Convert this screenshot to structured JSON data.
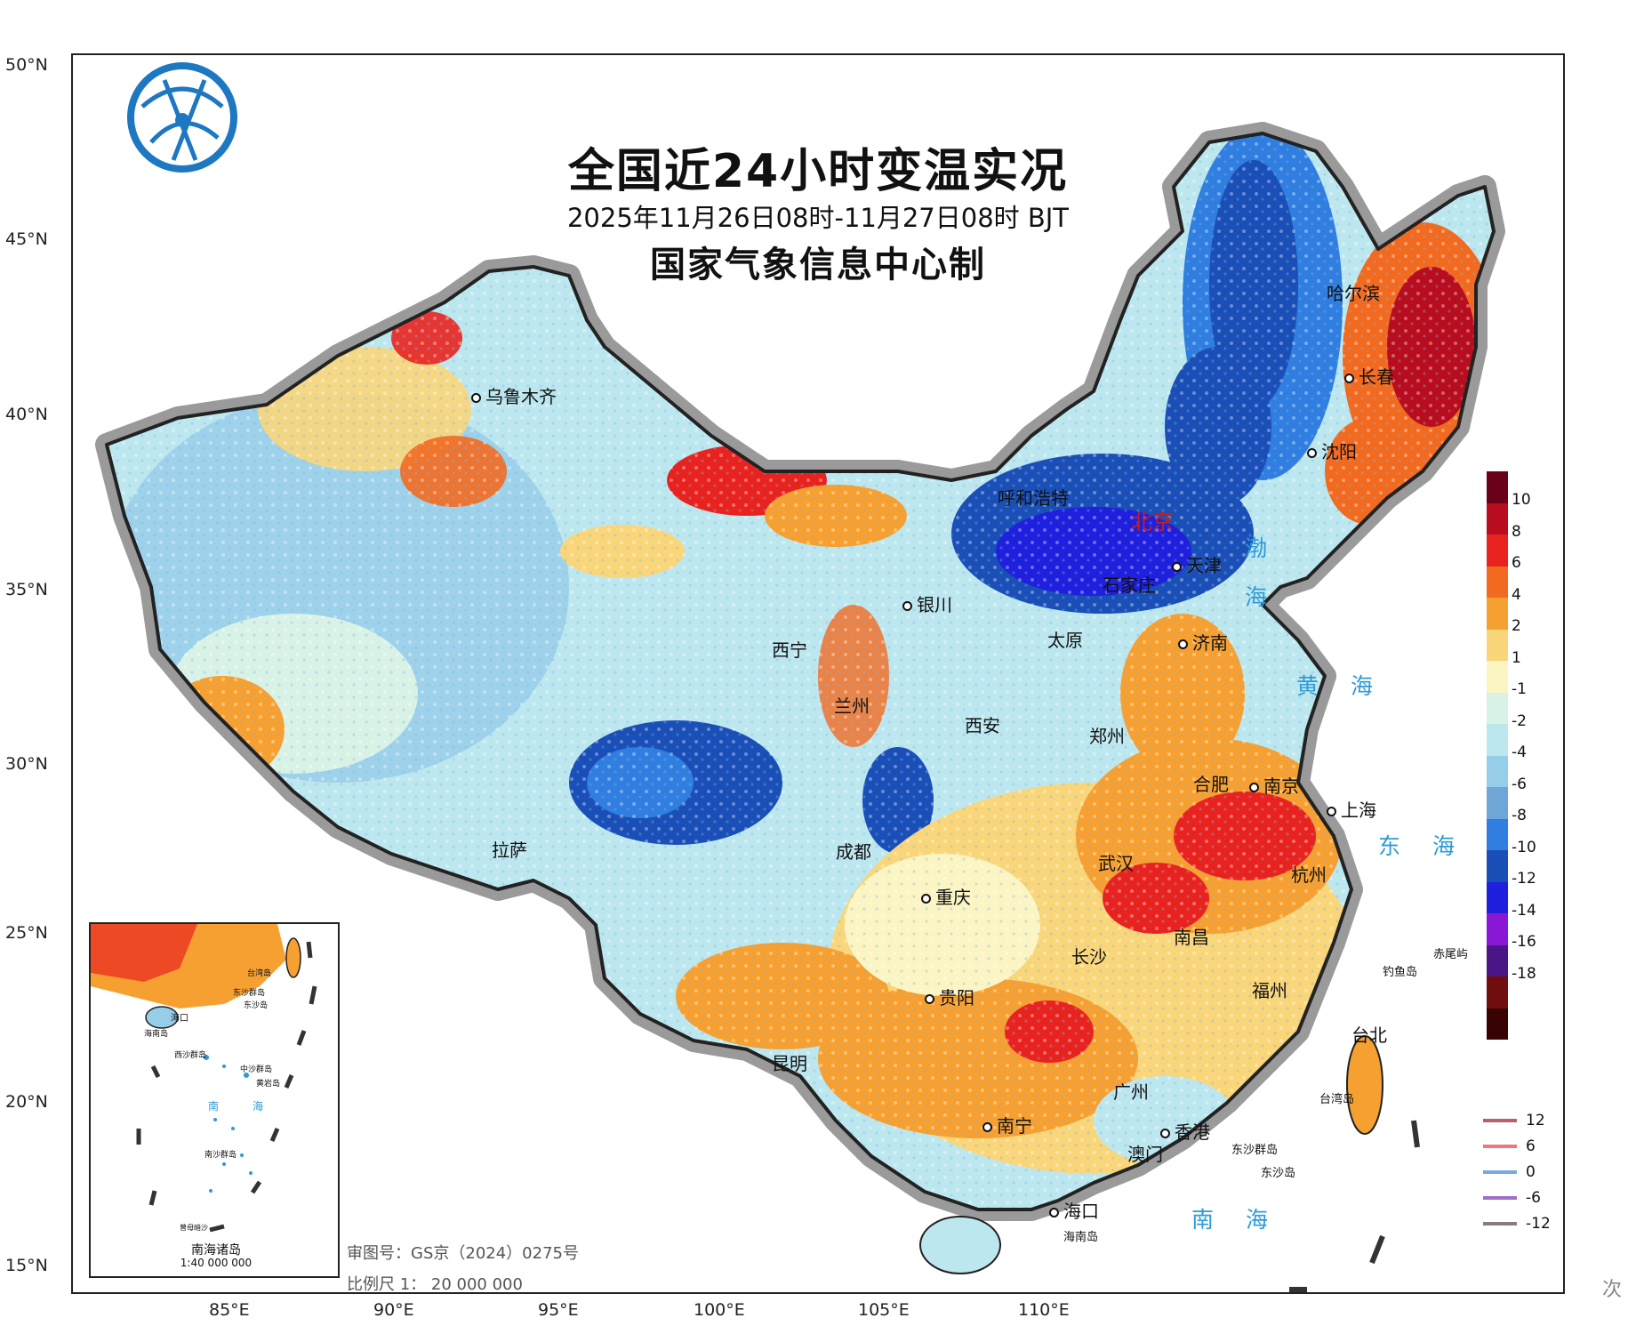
{
  "title": {
    "main": "全国近24小时变温实况",
    "period": "2025年11月26日08时-11月27日08时 BJT",
    "producer": "国家气象信息中心制"
  },
  "latitudes": [
    "50°N",
    "45°N",
    "40°N",
    "35°N",
    "30°N",
    "25°N",
    "20°N",
    "15°N"
  ],
  "longitudes": [
    "85°E",
    "90°E",
    "95°E",
    "100°E",
    "105°E",
    "110°E"
  ],
  "cities": {
    "urumqi": "乌鲁木齐",
    "harbin": "哈尔滨",
    "changchun": "长春",
    "shenyang": "沈阳",
    "hohhot": "呼和浩特",
    "beijing": "北京",
    "tianjin": "天津",
    "shijiazhuang": "石家庄",
    "yinchuan": "银川",
    "taiyuan": "太原",
    "jinan": "济南",
    "xining": "西宁",
    "lanzhou": "兰州",
    "xian": "西安",
    "zhengzhou": "郑州",
    "hefei": "合肥",
    "nanjing": "南京",
    "shanghai": "上海",
    "lhasa": "拉萨",
    "chengdu": "成都",
    "wuhan": "武汉",
    "hangzhou": "杭州",
    "chongqing": "重庆",
    "nanchang": "南昌",
    "changsha": "长沙",
    "guiyang": "贵阳",
    "fuzhou": "福州",
    "taipei": "台北",
    "kunming": "昆明",
    "guangzhou": "广州",
    "nanning": "南宁",
    "hongkong": "香港",
    "macau": "澳门",
    "haikou": "海口"
  },
  "places": {
    "hainan_island": "海南岛",
    "taiwan_island": "台湾岛",
    "diaoyu": "钓鱼岛",
    "chiwei": "赤尾屿",
    "dongsha_islands": "东沙群岛",
    "dongsha_island": "东沙岛"
  },
  "seas": {
    "bohai_1": "渤",
    "bohai_2": "海",
    "yellow_sea": "黄 海",
    "east_sea": "东 海",
    "south_sea": "南 海"
  },
  "inset": {
    "title": "南海诸岛",
    "scale": "1:40 000 000",
    "labels": [
      "台湾岛",
      "东沙群岛",
      "东沙岛",
      "海口",
      "海南岛",
      "西沙群岛",
      "中沙群岛",
      "黄岩岛",
      "南",
      "海",
      "南沙群岛",
      "曾母暗沙"
    ]
  },
  "footer": {
    "review_no": "审图号：GS京（2024）0275号",
    "scale": "比例尺  1： 20 000 000"
  },
  "legend": {
    "colors": [
      "#6b0019",
      "#b80d1e",
      "#e8231f",
      "#f26a20",
      "#f7a032",
      "#fad67a",
      "#fbf5c3",
      "#d9f2e6",
      "#bde7ef",
      "#96cde8",
      "#6fa6d8",
      "#2f7ee0",
      "#1a4fb8",
      "#1f1fde",
      "#8a17d6",
      "#4a1585",
      "#700d0d",
      "#3a0303"
    ],
    "labels": [
      "10",
      "8",
      "6",
      "4",
      "2",
      "1",
      "-1",
      "-2",
      "-4",
      "-6",
      "-8",
      "-10",
      "-12",
      "-14",
      "-16",
      "-18"
    ]
  },
  "isolines": [
    {
      "value": "12",
      "color": "#b8606e"
    },
    {
      "value": "6",
      "color": "#ee7777"
    },
    {
      "value": "0",
      "color": "#7aa8e0"
    },
    {
      "value": "-6",
      "color": "#a070c8"
    },
    {
      "value": "-12",
      "color": "#8a7a80"
    }
  ],
  "watermark": "次"
}
